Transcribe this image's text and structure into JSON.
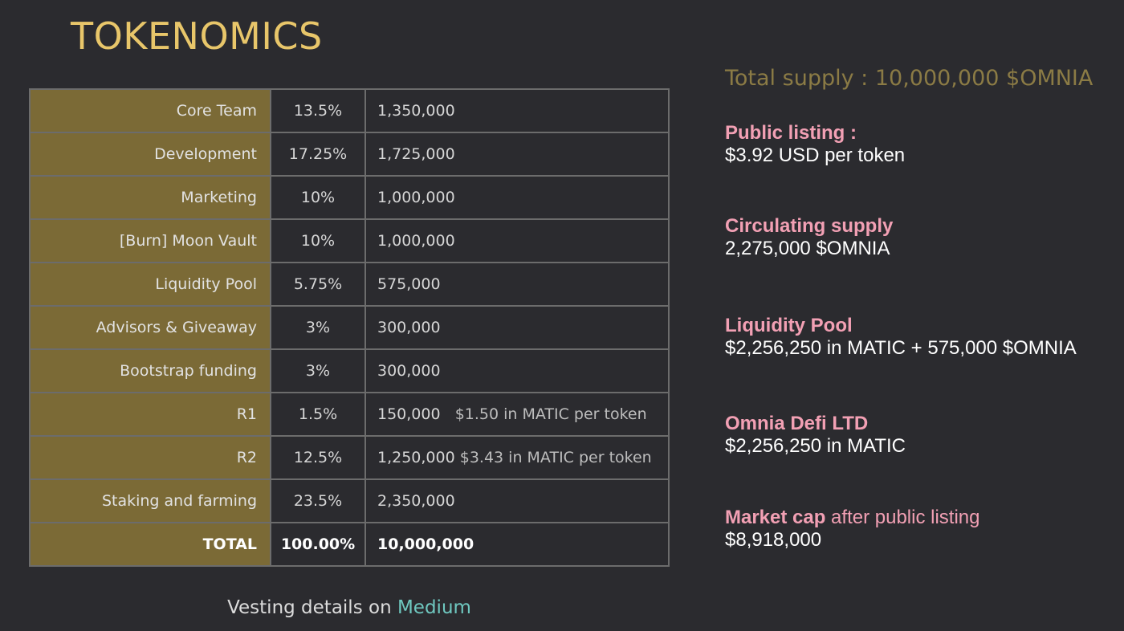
{
  "title": "TOKENOMICS",
  "table": {
    "rows": [
      {
        "label": "Core Team",
        "pct": "13.5%",
        "amount": "1,350,000",
        "note": ""
      },
      {
        "label": "Development",
        "pct": "17.25%",
        "amount": "1,725,000",
        "note": ""
      },
      {
        "label": "Marketing",
        "pct": "10%",
        "amount": "1,000,000",
        "note": ""
      },
      {
        "label": "[Burn] Moon Vault",
        "pct": "10%",
        "amount": "1,000,000",
        "note": ""
      },
      {
        "label": "Liquidity Pool",
        "pct": "5.75%",
        "amount": "575,000",
        "note": ""
      },
      {
        "label": "Advisors & Giveaway",
        "pct": "3%",
        "amount": "300,000",
        "note": ""
      },
      {
        "label": "Bootstrap funding",
        "pct": "3%",
        "amount": "300,000",
        "note": ""
      },
      {
        "label": "R1",
        "pct": "1.5%",
        "amount": "150,000",
        "note": "$1.50 in MATIC per token"
      },
      {
        "label": "R2",
        "pct": "12.5%",
        "amount": "1,250,000",
        "note": "$3.43 in MATIC per token"
      },
      {
        "label": "Staking and farming",
        "pct": "23.5%",
        "amount": "2,350,000",
        "note": ""
      }
    ],
    "total": {
      "label": "TOTAL",
      "pct": "100.00%",
      "amount": "10,000,000"
    }
  },
  "vesting": {
    "text": "Vesting details on ",
    "link": "Medium"
  },
  "supply": "Total supply : 10,000,000 $OMNIA",
  "info": [
    {
      "title": "Public listing :",
      "title_extra": "",
      "value": "$3.92 USD per token"
    },
    {
      "title": "Circulating supply",
      "title_extra": "",
      "value": "2,275,000 $OMNIA"
    },
    {
      "title": "Liquidity Pool",
      "title_extra": "",
      "value": "$2,256,250 in MATIC + 575,000 $OMNIA"
    },
    {
      "title": "Omnia Defi LTD",
      "title_extra": "",
      "value": "$2,256,250 in MATIC"
    },
    {
      "title": "Market cap",
      "title_extra": " after public listing",
      "value": "$8,918,000"
    }
  ],
  "colors": {
    "background": "#2b2b2f",
    "title": "#e8c66a",
    "label_cell": "#7b6a36",
    "supply": "#8b7b45",
    "info_title": "#f2a0b4",
    "link": "#6fc8c0"
  }
}
